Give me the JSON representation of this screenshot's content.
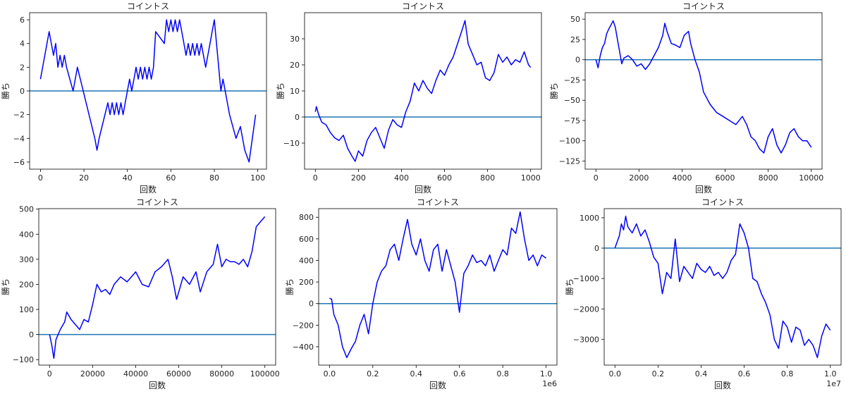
{
  "chart_data": [
    {
      "type": "line",
      "title": "コイントス",
      "xlabel": "回数",
      "ylabel": "勝ち",
      "xlim": [
        -5,
        104
      ],
      "ylim": [
        -6.6,
        6.6
      ],
      "xticks": [
        0,
        20,
        40,
        60,
        80,
        100
      ],
      "xtick_labels": [
        "0",
        "20",
        "40",
        "60",
        "80",
        "100"
      ],
      "yticks": [
        -6,
        -4,
        -2,
        0,
        2,
        4,
        6
      ],
      "ytick_labels": [
        "−6",
        "−4",
        "−2",
        "0",
        "2",
        "4",
        "6"
      ],
      "offset_label": "",
      "hline": 0,
      "series": [
        {
          "color": "#0000ff",
          "x": [
            0,
            4,
            6,
            7,
            8,
            9,
            10,
            11,
            12,
            15,
            17,
            25,
            26,
            27,
            31,
            32,
            33,
            34,
            35,
            36,
            37,
            38,
            39,
            40,
            41,
            42,
            43,
            44,
            45,
            46,
            47,
            48,
            49,
            50,
            51,
            52,
            53,
            57,
            58,
            59,
            60,
            61,
            62,
            63,
            64,
            65,
            66,
            67,
            68,
            69,
            70,
            71,
            72,
            73,
            74,
            75,
            76,
            77,
            78,
            79,
            80,
            83,
            84,
            85,
            86,
            87,
            90,
            92,
            94,
            96,
            99
          ],
          "y": [
            1,
            5,
            3,
            4,
            2,
            3,
            2,
            3,
            2,
            0,
            2,
            -4,
            -5,
            -4,
            -1,
            -2,
            -1,
            -2,
            -1,
            -2,
            -1,
            -2,
            -1,
            0,
            1,
            0,
            1,
            2,
            1,
            2,
            1,
            2,
            1,
            2,
            1,
            2,
            5,
            4,
            6,
            5,
            6,
            5,
            6,
            5,
            6,
            5,
            4,
            3,
            4,
            3,
            4,
            3,
            4,
            3,
            4,
            3,
            2,
            3,
            4,
            5,
            6,
            0,
            1,
            0,
            -1,
            -2,
            -4,
            -3,
            -5,
            -6,
            -2
          ]
        }
      ]
    },
    {
      "type": "line",
      "title": "コイントス",
      "xlabel": "回数",
      "ylabel": "勝ち",
      "xlim": [
        -50,
        1050
      ],
      "ylim": [
        -20,
        40
      ],
      "xticks": [
        0,
        200,
        400,
        600,
        800,
        1000
      ],
      "xtick_labels": [
        "0",
        "200",
        "400",
        "600",
        "800",
        "1000"
      ],
      "yticks": [
        -10,
        0,
        10,
        20,
        30
      ],
      "ytick_labels": [
        "−10",
        "0",
        "10",
        "20",
        "30"
      ],
      "offset_label": "",
      "hline": 0,
      "series": [
        {
          "color": "#0000ff",
          "x": [
            0,
            5,
            15,
            30,
            50,
            70,
            90,
            110,
            130,
            150,
            170,
            185,
            200,
            220,
            240,
            260,
            280,
            300,
            320,
            340,
            360,
            380,
            400,
            420,
            440,
            460,
            480,
            500,
            520,
            540,
            560,
            580,
            600,
            620,
            640,
            660,
            680,
            695,
            710,
            730,
            750,
            770,
            790,
            810,
            830,
            850,
            870,
            890,
            910,
            930,
            950,
            970,
            990,
            1000
          ],
          "y": [
            2,
            4,
            1,
            -2,
            -3,
            -6,
            -8,
            -9,
            -7,
            -12,
            -15,
            -17,
            -13,
            -15,
            -9,
            -6,
            -4,
            -8,
            -12,
            -5,
            -1,
            -3,
            -4,
            2,
            6,
            13,
            10,
            14,
            11,
            9,
            14,
            18,
            16,
            20,
            23,
            28,
            33,
            37,
            28,
            24,
            20,
            21,
            15,
            14,
            17,
            24,
            21,
            23,
            20,
            22,
            21,
            25,
            20,
            19
          ]
        }
      ]
    },
    {
      "type": "line",
      "title": "コイントス",
      "xlabel": "回数",
      "ylabel": "勝ち",
      "xlim": [
        -500,
        10500
      ],
      "ylim": [
        -135,
        58
      ],
      "xticks": [
        0,
        2000,
        4000,
        6000,
        8000,
        10000
      ],
      "xtick_labels": [
        "0",
        "2000",
        "4000",
        "6000",
        "8000",
        "10000"
      ],
      "yticks": [
        -125,
        -100,
        -75,
        -50,
        -25,
        0,
        25,
        50
      ],
      "ytick_labels": [
        "−125",
        "−100",
        "−75",
        "−50",
        "−25",
        "0",
        "25",
        "50"
      ],
      "offset_label": "",
      "hline": 0,
      "series": [
        {
          "color": "#0000ff",
          "x": [
            0,
            100,
            200,
            300,
            400,
            500,
            600,
            700,
            800,
            900,
            1000,
            1100,
            1200,
            1300,
            1500,
            1700,
            1900,
            2100,
            2300,
            2500,
            2700,
            2900,
            3100,
            3200,
            3300,
            3500,
            3700,
            3900,
            4100,
            4300,
            4400,
            4600,
            4800,
            5000,
            5300,
            5600,
            5900,
            6200,
            6500,
            6800,
            7000,
            7200,
            7400,
            7600,
            7800,
            8000,
            8200,
            8400,
            8600,
            8800,
            9000,
            9200,
            9400,
            9600,
            9800,
            10000
          ],
          "y": [
            0,
            -10,
            5,
            15,
            20,
            32,
            38,
            43,
            48,
            40,
            25,
            10,
            -5,
            2,
            5,
            0,
            -8,
            -5,
            -12,
            -5,
            5,
            15,
            30,
            45,
            35,
            20,
            18,
            15,
            30,
            35,
            20,
            0,
            -15,
            -40,
            -55,
            -65,
            -70,
            -75,
            -80,
            -70,
            -80,
            -95,
            -100,
            -110,
            -115,
            -95,
            -85,
            -105,
            -115,
            -105,
            -90,
            -85,
            -95,
            -100,
            -100,
            -108
          ]
        }
      ]
    },
    {
      "type": "line",
      "title": "コイントス",
      "xlabel": "回数",
      "ylabel": "勝ち",
      "xlim": [
        -5000,
        105000
      ],
      "ylim": [
        -122,
        502
      ],
      "xticks": [
        0,
        20000,
        40000,
        60000,
        80000,
        100000
      ],
      "xtick_labels": [
        "0",
        "20000",
        "40000",
        "60000",
        "80000",
        "100000"
      ],
      "yticks": [
        -100,
        0,
        100,
        200,
        300,
        400,
        500
      ],
      "ytick_labels": [
        "−100",
        "0",
        "100",
        "200",
        "300",
        "400",
        "500"
      ],
      "offset_label": "",
      "hline": 0,
      "series": [
        {
          "color": "#0000ff",
          "x": [
            0,
            1000,
            2000,
            3000,
            5000,
            7000,
            8000,
            10000,
            12000,
            14000,
            16000,
            18000,
            20000,
            22000,
            24000,
            26000,
            28000,
            30000,
            33000,
            36000,
            40000,
            43000,
            46000,
            49000,
            52000,
            55000,
            57000,
            59000,
            62000,
            65000,
            68000,
            70000,
            73000,
            76000,
            78000,
            80000,
            82000,
            84000,
            86000,
            88000,
            90000,
            92000,
            94000,
            96000,
            98000,
            100000
          ],
          "y": [
            0,
            -40,
            -95,
            -20,
            20,
            50,
            90,
            60,
            40,
            20,
            60,
            50,
            120,
            200,
            170,
            180,
            160,
            200,
            230,
            210,
            250,
            200,
            190,
            250,
            270,
            300,
            230,
            140,
            230,
            200,
            250,
            170,
            250,
            280,
            360,
            270,
            300,
            290,
            290,
            280,
            300,
            270,
            330,
            430,
            450,
            470
          ]
        }
      ]
    },
    {
      "type": "line",
      "title": "コイントス",
      "xlabel": "回数",
      "ylabel": "勝ち",
      "xlim": [
        -0.05,
        1.05
      ],
      "ylim": [
        -570,
        880
      ],
      "xticks": [
        0,
        0.2,
        0.4,
        0.6,
        0.8,
        1.0
      ],
      "xtick_labels": [
        "0.0",
        "0.2",
        "0.4",
        "0.6",
        "0.8",
        "1.0"
      ],
      "yticks": [
        -400,
        -200,
        0,
        200,
        400,
        600,
        800
      ],
      "ytick_labels": [
        "−400",
        "−200",
        "0",
        "200",
        "400",
        "600",
        "800"
      ],
      "offset_label": "1e6",
      "hline": 0,
      "series": [
        {
          "color": "#0000ff",
          "x": [
            0,
            0.01,
            0.02,
            0.04,
            0.06,
            0.08,
            0.1,
            0.12,
            0.14,
            0.16,
            0.18,
            0.2,
            0.22,
            0.24,
            0.26,
            0.28,
            0.3,
            0.32,
            0.34,
            0.36,
            0.38,
            0.4,
            0.42,
            0.44,
            0.46,
            0.48,
            0.5,
            0.52,
            0.54,
            0.56,
            0.58,
            0.6,
            0.62,
            0.64,
            0.66,
            0.68,
            0.7,
            0.72,
            0.74,
            0.76,
            0.78,
            0.8,
            0.82,
            0.84,
            0.86,
            0.88,
            0.9,
            0.92,
            0.94,
            0.96,
            0.98,
            1.0
          ],
          "y": [
            50,
            40,
            -100,
            -200,
            -400,
            -500,
            -420,
            -350,
            -200,
            -100,
            -280,
            0,
            200,
            300,
            350,
            500,
            550,
            400,
            600,
            780,
            550,
            450,
            600,
            400,
            300,
            500,
            550,
            300,
            500,
            350,
            200,
            -80,
            280,
            350,
            450,
            380,
            400,
            350,
            450,
            300,
            400,
            500,
            450,
            700,
            650,
            850,
            600,
            400,
            450,
            350,
            450,
            420
          ]
        }
      ]
    },
    {
      "type": "line",
      "title": "コイントス",
      "xlabel": "回数",
      "ylabel": "勝ち",
      "xlim": [
        -0.05,
        1.05
      ],
      "ylim": [
        -3850,
        1300
      ],
      "xticks": [
        0,
        0.2,
        0.4,
        0.6,
        0.8,
        1.0
      ],
      "xtick_labels": [
        "0.0",
        "0.2",
        "0.4",
        "0.6",
        "0.8",
        "1.0"
      ],
      "yticks": [
        -3000,
        -2000,
        -1000,
        0,
        1000
      ],
      "ytick_labels": [
        "−3000",
        "−2000",
        "−1000",
        "0",
        "1000"
      ],
      "offset_label": "1e7",
      "hline": 0,
      "series": [
        {
          "color": "#0000ff",
          "x": [
            0,
            0.01,
            0.02,
            0.03,
            0.04,
            0.05,
            0.06,
            0.08,
            0.1,
            0.12,
            0.14,
            0.16,
            0.18,
            0.2,
            0.22,
            0.24,
            0.26,
            0.28,
            0.3,
            0.32,
            0.34,
            0.36,
            0.38,
            0.4,
            0.42,
            0.44,
            0.46,
            0.48,
            0.5,
            0.52,
            0.54,
            0.56,
            0.58,
            0.6,
            0.62,
            0.64,
            0.66,
            0.68,
            0.7,
            0.72,
            0.74,
            0.76,
            0.78,
            0.8,
            0.82,
            0.84,
            0.86,
            0.88,
            0.9,
            0.92,
            0.94,
            0.96,
            0.98,
            1.0
          ],
          "y": [
            0,
            200,
            400,
            800,
            600,
            1050,
            700,
            500,
            800,
            400,
            600,
            200,
            -300,
            -500,
            -1500,
            -800,
            -1000,
            300,
            -1100,
            -600,
            -800,
            -1000,
            -500,
            -700,
            -800,
            -600,
            -900,
            -800,
            -1000,
            -800,
            -400,
            -200,
            800,
            500,
            0,
            -1000,
            -1100,
            -1500,
            -1800,
            -2200,
            -3000,
            -3300,
            -2400,
            -2600,
            -3100,
            -2600,
            -2700,
            -3200,
            -3000,
            -3200,
            -3600,
            -2900,
            -2500,
            -2700
          ]
        }
      ]
    }
  ]
}
